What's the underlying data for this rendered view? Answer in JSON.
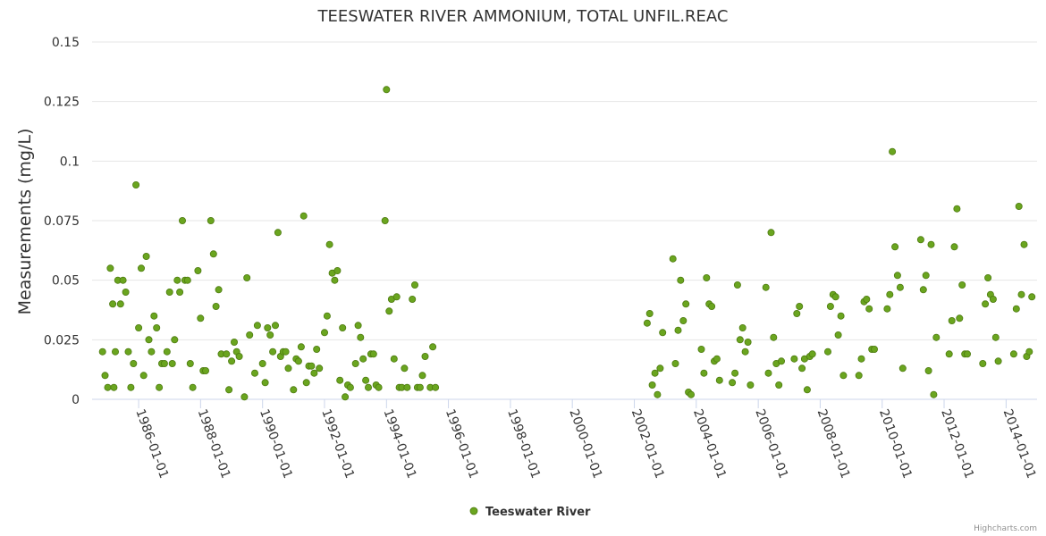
{
  "credits": "Highcharts.com",
  "chart_data": {
    "type": "scatter",
    "title": "TEESWATER RIVER AMMONIUM, TOTAL UNFIL.REAC",
    "ylabel": "Measurements (mg/L)",
    "ylim": [
      0,
      0.15
    ],
    "y_ticks": [
      "0",
      "0.025",
      "0.05",
      "0.075",
      "0.1",
      "0.125",
      "0.15"
    ],
    "x_range": [
      "1984-07-01",
      "2015-01-01"
    ],
    "x_ticks": [
      "1986-01-01",
      "1988-01-01",
      "1990-01-01",
      "1992-01-01",
      "1994-01-01",
      "1996-01-01",
      "1998-01-01",
      "2000-01-01",
      "2002-01-01",
      "2004-01-01",
      "2006-01-01",
      "2008-01-01",
      "2010-01-01",
      "2012-01-01",
      "2014-01-01"
    ],
    "grid": true,
    "legend_position": "bottom-center",
    "series": [
      {
        "name": "Teeswater River",
        "color": "#6aa51f",
        "points": [
          [
            "1984-11-01",
            0.02
          ],
          [
            "1984-12-01",
            0.01
          ],
          [
            "1985-01-01",
            0.005
          ],
          [
            "1985-02-01",
            0.055
          ],
          [
            "1985-03-01",
            0.04
          ],
          [
            "1985-03-15",
            0.005
          ],
          [
            "1985-04-01",
            0.02
          ],
          [
            "1985-05-01",
            0.05
          ],
          [
            "1985-06-01",
            0.04
          ],
          [
            "1985-07-01",
            0.05
          ],
          [
            "1985-08-01",
            0.045
          ],
          [
            "1985-09-01",
            0.02
          ],
          [
            "1985-10-01",
            0.005
          ],
          [
            "1985-11-01",
            0.015
          ],
          [
            "1985-12-01",
            0.09
          ],
          [
            "1986-01-01",
            0.03
          ],
          [
            "1986-02-01",
            0.055
          ],
          [
            "1986-03-01",
            0.01
          ],
          [
            "1986-04-01",
            0.06
          ],
          [
            "1986-05-01",
            0.025
          ],
          [
            "1986-06-01",
            0.02
          ],
          [
            "1986-07-01",
            0.035
          ],
          [
            "1986-08-01",
            0.03
          ],
          [
            "1986-09-01",
            0.005
          ],
          [
            "1986-10-01",
            0.015
          ],
          [
            "1986-11-01",
            0.015
          ],
          [
            "1986-12-01",
            0.02
          ],
          [
            "1987-01-01",
            0.045
          ],
          [
            "1987-02-01",
            0.015
          ],
          [
            "1987-03-01",
            0.025
          ],
          [
            "1987-04-01",
            0.05
          ],
          [
            "1987-05-01",
            0.045
          ],
          [
            "1987-06-01",
            0.075
          ],
          [
            "1987-07-01",
            0.05
          ],
          [
            "1987-08-01",
            0.05
          ],
          [
            "1987-09-01",
            0.015
          ],
          [
            "1987-10-01",
            0.005
          ],
          [
            "1987-12-01",
            0.054
          ],
          [
            "1988-01-01",
            0.034
          ],
          [
            "1988-02-01",
            0.012
          ],
          [
            "1988-03-01",
            0.012
          ],
          [
            "1988-05-01",
            0.075
          ],
          [
            "1988-06-01",
            0.061
          ],
          [
            "1988-07-01",
            0.039
          ],
          [
            "1988-08-01",
            0.046
          ],
          [
            "1988-09-01",
            0.019
          ],
          [
            "1988-11-01",
            0.019
          ],
          [
            "1988-12-01",
            0.004
          ],
          [
            "1989-01-01",
            0.016
          ],
          [
            "1989-02-01",
            0.024
          ],
          [
            "1989-03-01",
            0.02
          ],
          [
            "1989-04-01",
            0.018
          ],
          [
            "1989-06-01",
            0.001
          ],
          [
            "1989-07-01",
            0.051
          ],
          [
            "1989-08-01",
            0.027
          ],
          [
            "1989-10-01",
            0.011
          ],
          [
            "1989-11-01",
            0.031
          ],
          [
            "1990-01-01",
            0.015
          ],
          [
            "1990-02-01",
            0.007
          ],
          [
            "1990-03-01",
            0.03
          ],
          [
            "1990-04-01",
            0.027
          ],
          [
            "1990-05-01",
            0.02
          ],
          [
            "1990-06-01",
            0.031
          ],
          [
            "1990-07-01",
            0.07
          ],
          [
            "1990-08-01",
            0.018
          ],
          [
            "1990-09-01",
            0.02
          ],
          [
            "1990-10-01",
            0.02
          ],
          [
            "1990-11-01",
            0.013
          ],
          [
            "1991-01-01",
            0.004
          ],
          [
            "1991-02-01",
            0.017
          ],
          [
            "1991-03-01",
            0.016
          ],
          [
            "1991-04-01",
            0.022
          ],
          [
            "1991-05-01",
            0.077
          ],
          [
            "1991-06-01",
            0.007
          ],
          [
            "1991-07-01",
            0.014
          ],
          [
            "1991-08-01",
            0.014
          ],
          [
            "1991-09-01",
            0.011
          ],
          [
            "1991-10-01",
            0.021
          ],
          [
            "1991-11-01",
            0.013
          ],
          [
            "1992-01-01",
            0.028
          ],
          [
            "1992-02-01",
            0.035
          ],
          [
            "1992-03-01",
            0.065
          ],
          [
            "1992-04-01",
            0.053
          ],
          [
            "1992-05-01",
            0.05
          ],
          [
            "1992-06-01",
            0.054
          ],
          [
            "1992-07-01",
            0.008
          ],
          [
            "1992-08-01",
            0.03
          ],
          [
            "1992-09-01",
            0.001
          ],
          [
            "1992-10-01",
            0.006
          ],
          [
            "1992-11-01",
            0.005
          ],
          [
            "1993-01-01",
            0.015
          ],
          [
            "1993-02-01",
            0.031
          ],
          [
            "1993-03-01",
            0.026
          ],
          [
            "1993-04-01",
            0.017
          ],
          [
            "1993-05-01",
            0.008
          ],
          [
            "1993-06-01",
            0.005
          ],
          [
            "1993-07-01",
            0.019
          ],
          [
            "1993-08-01",
            0.019
          ],
          [
            "1993-09-01",
            0.006
          ],
          [
            "1993-10-01",
            0.005
          ],
          [
            "1993-12-15",
            0.075
          ],
          [
            "1994-01-01",
            0.13
          ],
          [
            "1994-02-01",
            0.037
          ],
          [
            "1994-03-01",
            0.042
          ],
          [
            "1994-04-01",
            0.017
          ],
          [
            "1994-05-01",
            0.043
          ],
          [
            "1994-06-01",
            0.005
          ],
          [
            "1994-07-01",
            0.005
          ],
          [
            "1994-08-01",
            0.013
          ],
          [
            "1994-09-01",
            0.005
          ],
          [
            "1994-11-01",
            0.042
          ],
          [
            "1994-12-01",
            0.048
          ],
          [
            "1995-01-01",
            0.005
          ],
          [
            "1995-02-01",
            0.005
          ],
          [
            "1995-03-01",
            0.01
          ],
          [
            "1995-04-01",
            0.018
          ],
          [
            "1995-06-01",
            0.005
          ],
          [
            "1995-07-01",
            0.022
          ],
          [
            "1995-08-01",
            0.005
          ],
          [
            "2002-06-01",
            0.032
          ],
          [
            "2002-07-01",
            0.036
          ],
          [
            "2002-08-01",
            0.006
          ],
          [
            "2002-09-01",
            0.011
          ],
          [
            "2002-10-01",
            0.002
          ],
          [
            "2002-11-01",
            0.013
          ],
          [
            "2002-12-01",
            0.028
          ],
          [
            "2003-04-01",
            0.059
          ],
          [
            "2003-05-01",
            0.015
          ],
          [
            "2003-06-01",
            0.029
          ],
          [
            "2003-07-01",
            0.05
          ],
          [
            "2003-08-01",
            0.033
          ],
          [
            "2003-09-01",
            0.04
          ],
          [
            "2003-10-01",
            0.003
          ],
          [
            "2003-11-01",
            0.002
          ],
          [
            "2004-03-01",
            0.021
          ],
          [
            "2004-04-01",
            0.011
          ],
          [
            "2004-05-01",
            0.051
          ],
          [
            "2004-06-01",
            0.04
          ],
          [
            "2004-07-01",
            0.039
          ],
          [
            "2004-08-01",
            0.016
          ],
          [
            "2004-09-01",
            0.017
          ],
          [
            "2004-10-01",
            0.008
          ],
          [
            "2005-03-01",
            0.007
          ],
          [
            "2005-04-01",
            0.011
          ],
          [
            "2005-05-01",
            0.048
          ],
          [
            "2005-06-01",
            0.025
          ],
          [
            "2005-07-01",
            0.03
          ],
          [
            "2005-08-01",
            0.02
          ],
          [
            "2005-09-01",
            0.024
          ],
          [
            "2005-10-01",
            0.006
          ],
          [
            "2006-04-01",
            0.047
          ],
          [
            "2006-05-01",
            0.011
          ],
          [
            "2006-06-01",
            0.07
          ],
          [
            "2006-07-01",
            0.026
          ],
          [
            "2006-08-01",
            0.015
          ],
          [
            "2006-09-01",
            0.006
          ],
          [
            "2006-10-01",
            0.016
          ],
          [
            "2007-03-01",
            0.017
          ],
          [
            "2007-04-01",
            0.036
          ],
          [
            "2007-05-01",
            0.039
          ],
          [
            "2007-06-01",
            0.013
          ],
          [
            "2007-07-01",
            0.017
          ],
          [
            "2007-08-01",
            0.004
          ],
          [
            "2007-09-01",
            0.018
          ],
          [
            "2007-10-01",
            0.019
          ],
          [
            "2008-04-01",
            0.02
          ],
          [
            "2008-05-01",
            0.039
          ],
          [
            "2008-06-01",
            0.044
          ],
          [
            "2008-07-01",
            0.043
          ],
          [
            "2008-08-01",
            0.027
          ],
          [
            "2008-09-01",
            0.035
          ],
          [
            "2008-10-01",
            0.01
          ],
          [
            "2009-04-01",
            0.01
          ],
          [
            "2009-05-01",
            0.017
          ],
          [
            "2009-06-01",
            0.041
          ],
          [
            "2009-07-01",
            0.042
          ],
          [
            "2009-08-01",
            0.038
          ],
          [
            "2009-09-01",
            0.021
          ],
          [
            "2009-10-01",
            0.021
          ],
          [
            "2010-03-01",
            0.038
          ],
          [
            "2010-04-01",
            0.044
          ],
          [
            "2010-05-01",
            0.104
          ],
          [
            "2010-06-01",
            0.064
          ],
          [
            "2010-07-01",
            0.052
          ],
          [
            "2010-08-01",
            0.047
          ],
          [
            "2010-09-01",
            0.013
          ],
          [
            "2011-04-01",
            0.067
          ],
          [
            "2011-05-01",
            0.046
          ],
          [
            "2011-06-01",
            0.052
          ],
          [
            "2011-07-01",
            0.012
          ],
          [
            "2011-08-01",
            0.065
          ],
          [
            "2011-09-01",
            0.002
          ],
          [
            "2011-10-01",
            0.026
          ],
          [
            "2012-03-01",
            0.019
          ],
          [
            "2012-04-01",
            0.033
          ],
          [
            "2012-05-01",
            0.064
          ],
          [
            "2012-06-01",
            0.08
          ],
          [
            "2012-07-01",
            0.034
          ],
          [
            "2012-08-01",
            0.048
          ],
          [
            "2012-09-01",
            0.019
          ],
          [
            "2012-10-01",
            0.019
          ],
          [
            "2013-04-01",
            0.015
          ],
          [
            "2013-05-01",
            0.04
          ],
          [
            "2013-06-01",
            0.051
          ],
          [
            "2013-07-01",
            0.044
          ],
          [
            "2013-08-01",
            0.042
          ],
          [
            "2013-09-01",
            0.026
          ],
          [
            "2013-10-01",
            0.016
          ],
          [
            "2014-04-01",
            0.019
          ],
          [
            "2014-05-01",
            0.038
          ],
          [
            "2014-06-01",
            0.081
          ],
          [
            "2014-07-01",
            0.044
          ],
          [
            "2014-08-01",
            0.065
          ],
          [
            "2014-09-01",
            0.018
          ],
          [
            "2014-10-01",
            0.02
          ],
          [
            "2014-11-01",
            0.043
          ]
        ]
      }
    ]
  }
}
